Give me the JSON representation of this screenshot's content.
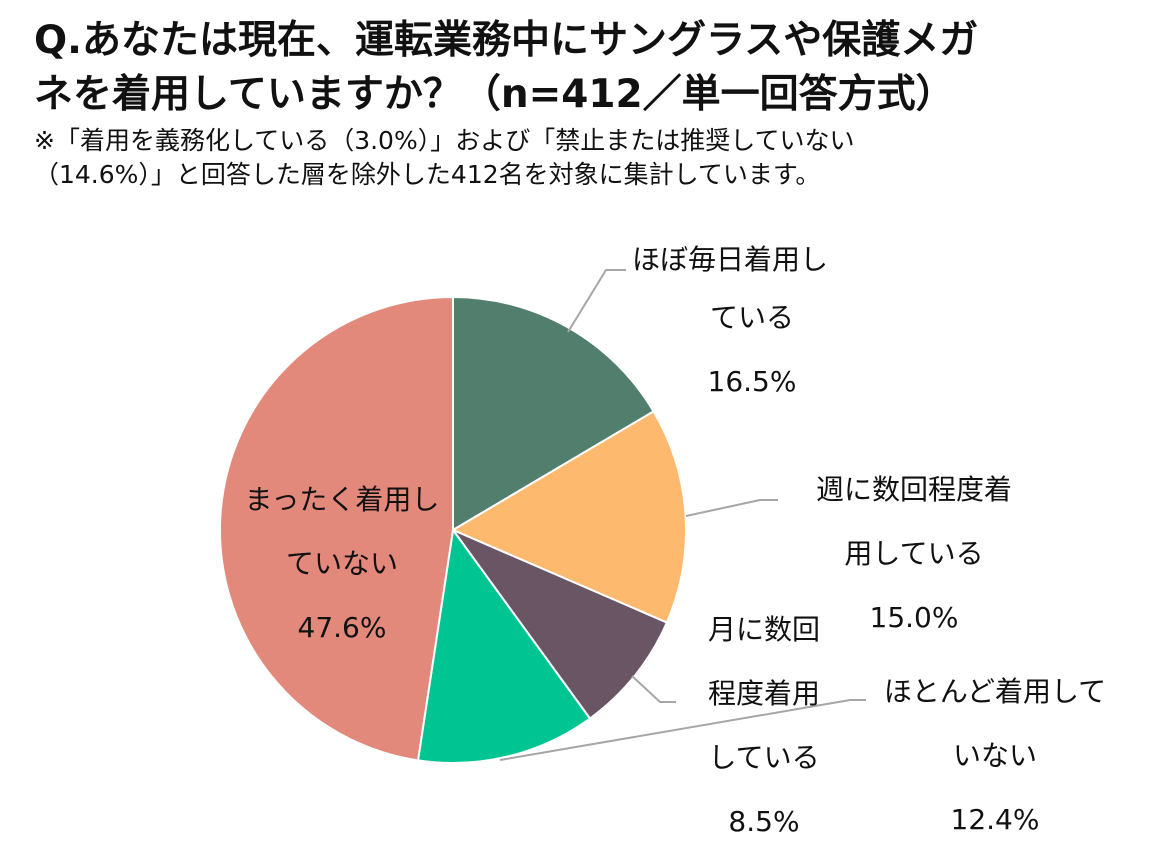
{
  "header": {
    "title_lines": [
      "Q.あなたは現在、運転業務中にサングラスや保護メガ",
      "ネを着用していますか？（n=412／単一回答方式）"
    ],
    "note_lines": [
      "※「着用を義務化している（3.0%）」および「禁止または推奨していない",
      "（14.6%）」と回答した層を除外した412名を対象に集計しています。"
    ]
  },
  "chart_data": {
    "type": "pie",
    "start_angle_deg": 0,
    "direction": "clockwise",
    "slices": [
      {
        "label_lines": [
          "ほぼ毎日着用し",
          "ている"
        ],
        "value": 16.5,
        "value_label": "16.5%",
        "color": "#527E6E"
      },
      {
        "label_lines": [
          "週に数回程度着",
          "用している"
        ],
        "value": 15.0,
        "value_label": "15.0%",
        "color": "#FDB96E"
      },
      {
        "label_lines": [
          "月に数回",
          "程度着用",
          "している"
        ],
        "value": 8.5,
        "value_label": "8.5%",
        "color": "#6A5565"
      },
      {
        "label_lines": [
          "ほとんど着用して",
          "いない"
        ],
        "value": 12.4,
        "value_label": "12.4%",
        "color": "#00C593"
      },
      {
        "label_lines": [
          "まったく着用し",
          "ていない"
        ],
        "value": 47.6,
        "value_label": "47.6%",
        "color": "#E2897B"
      }
    ]
  }
}
